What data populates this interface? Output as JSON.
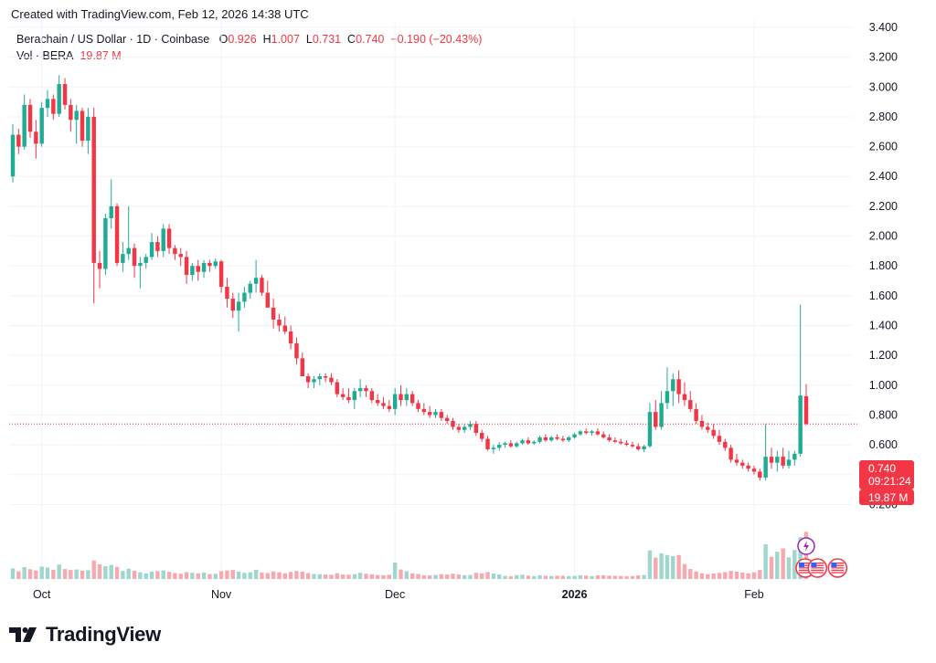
{
  "header": {
    "created_text": "Created with TradingView.com, Feb 12, 2026 14:38 UTC"
  },
  "legend": {
    "symbol": "Berachain / US Dollar · 1D · Coinbase",
    "o_label": "O",
    "o_value": "0.926",
    "h_label": "H",
    "h_value": "1.007",
    "l_label": "L",
    "l_value": "0.731",
    "c_label": "C",
    "c_value": "0.740",
    "change": "−0.190 (−20.43%)",
    "vol_label": "Vol · BERA",
    "vol_value": "19.87 M"
  },
  "price_tag": {
    "price": "0.740",
    "countdown": "09:21:24",
    "volume": "19.87 M"
  },
  "brand": {
    "name": "TradingView"
  },
  "colors": {
    "up": "#22ab94",
    "down": "#f23645",
    "up_vol": "#9fd6cd",
    "down_vol": "#f7a9b0",
    "grid": "#f0f3fa",
    "text": "#131722"
  },
  "chart_data": {
    "type": "candlestick",
    "title": "Berachain / US Dollar · 1D · Coinbase",
    "y_ticks": [
      "3.400",
      "3.200",
      "3.000",
      "2.800",
      "2.600",
      "2.400",
      "2.200",
      "2.000",
      "1.800",
      "1.600",
      "1.400",
      "1.200",
      "1.000",
      "0.800",
      "0.600",
      "0.400",
      "0.200"
    ],
    "x_ticks": [
      {
        "label": "Oct",
        "date": "2025-10-01",
        "bold": false
      },
      {
        "label": "Nov",
        "date": "2025-11-01",
        "bold": false
      },
      {
        "label": "Dec",
        "date": "2025-12-01",
        "bold": false
      },
      {
        "label": "2026",
        "date": "2026-01-01",
        "bold": true
      },
      {
        "label": "Feb",
        "date": "2026-02-01",
        "bold": false
      }
    ],
    "ylim": [
      0.0,
      3.4
    ],
    "x_range": [
      "2025-09-26",
      "2026-02-16"
    ],
    "grid": true,
    "last_price": 0.74,
    "events": [
      {
        "date": "2026-02-10",
        "type": "lightning-icon"
      },
      {
        "date": "2026-02-10",
        "type": "us-flag-icon"
      },
      {
        "date": "2026-02-11",
        "type": "us-flag-icon"
      },
      {
        "date": "2026-02-17",
        "type": "us-flag-icon"
      }
    ],
    "ohlcv": [
      [
        "2025-09-26",
        2.4,
        2.75,
        2.36,
        2.68,
        4.5
      ],
      [
        "2025-09-27",
        2.68,
        2.72,
        2.55,
        2.6,
        3.2
      ],
      [
        "2025-09-28",
        2.6,
        2.95,
        2.58,
        2.88,
        5.0
      ],
      [
        "2025-09-29",
        2.88,
        2.92,
        2.66,
        2.7,
        4.1
      ],
      [
        "2025-09-30",
        2.7,
        2.78,
        2.52,
        2.62,
        3.6
      ],
      [
        "2025-10-01",
        2.62,
        2.9,
        2.6,
        2.86,
        5.2
      ],
      [
        "2025-10-02",
        2.86,
        2.98,
        2.8,
        2.92,
        4.8
      ],
      [
        "2025-10-03",
        2.92,
        2.95,
        2.78,
        2.82,
        3.9
      ],
      [
        "2025-10-04",
        2.82,
        3.08,
        2.8,
        3.02,
        6.1
      ],
      [
        "2025-10-05",
        3.02,
        3.06,
        2.85,
        2.88,
        4.2
      ],
      [
        "2025-10-06",
        2.88,
        2.92,
        2.7,
        2.78,
        3.8
      ],
      [
        "2025-10-07",
        2.78,
        2.88,
        2.62,
        2.84,
        4.0
      ],
      [
        "2025-10-08",
        2.84,
        2.86,
        2.6,
        2.64,
        3.5
      ],
      [
        "2025-10-09",
        2.64,
        2.86,
        2.55,
        2.8,
        3.7
      ],
      [
        "2025-10-10",
        2.8,
        2.86,
        1.55,
        1.82,
        7.8
      ],
      [
        "2025-10-11",
        1.82,
        1.9,
        1.65,
        1.78,
        6.2
      ],
      [
        "2025-10-12",
        1.78,
        2.15,
        1.74,
        2.12,
        5.4
      ],
      [
        "2025-10-13",
        2.12,
        2.38,
        2.05,
        2.2,
        5.9
      ],
      [
        "2025-10-14",
        2.2,
        2.22,
        1.8,
        1.82,
        5.1
      ],
      [
        "2025-10-15",
        1.82,
        1.96,
        1.76,
        1.88,
        3.4
      ],
      [
        "2025-10-16",
        1.88,
        2.2,
        1.84,
        1.92,
        4.3
      ],
      [
        "2025-10-17",
        1.92,
        1.95,
        1.72,
        1.8,
        3.5
      ],
      [
        "2025-10-18",
        1.8,
        1.86,
        1.65,
        1.82,
        2.8
      ],
      [
        "2025-10-19",
        1.82,
        1.88,
        1.78,
        1.86,
        2.4
      ],
      [
        "2025-10-20",
        1.86,
        2.02,
        1.84,
        1.96,
        3.1
      ],
      [
        "2025-10-21",
        1.96,
        2.0,
        1.86,
        1.9,
        3.3
      ],
      [
        "2025-10-22",
        1.9,
        2.08,
        1.86,
        2.05,
        3.6
      ],
      [
        "2025-10-23",
        2.05,
        2.08,
        1.88,
        1.92,
        3.0
      ],
      [
        "2025-10-24",
        1.92,
        1.94,
        1.84,
        1.88,
        2.5
      ],
      [
        "2025-10-25",
        1.88,
        1.92,
        1.8,
        1.86,
        2.2
      ],
      [
        "2025-10-26",
        1.86,
        1.9,
        1.68,
        1.74,
        2.9
      ],
      [
        "2025-10-27",
        1.74,
        1.82,
        1.7,
        1.8,
        2.6
      ],
      [
        "2025-10-28",
        1.8,
        1.84,
        1.7,
        1.76,
        2.4
      ],
      [
        "2025-10-29",
        1.76,
        1.84,
        1.72,
        1.82,
        2.7
      ],
      [
        "2025-10-30",
        1.82,
        1.84,
        1.76,
        1.8,
        2.1
      ],
      [
        "2025-10-31",
        1.8,
        1.85,
        1.78,
        1.83,
        2.2
      ],
      [
        "2025-11-01",
        1.83,
        1.84,
        1.62,
        1.66,
        3.3
      ],
      [
        "2025-11-02",
        1.66,
        1.72,
        1.52,
        1.58,
        3.6
      ],
      [
        "2025-11-03",
        1.58,
        1.62,
        1.45,
        1.5,
        3.8
      ],
      [
        "2025-11-04",
        1.5,
        1.62,
        1.36,
        1.56,
        3.1
      ],
      [
        "2025-11-05",
        1.56,
        1.66,
        1.52,
        1.62,
        2.6
      ],
      [
        "2025-11-06",
        1.62,
        1.7,
        1.58,
        1.68,
        2.8
      ],
      [
        "2025-11-07",
        1.68,
        1.84,
        1.62,
        1.72,
        3.9
      ],
      [
        "2025-11-08",
        1.72,
        1.74,
        1.6,
        1.62,
        2.7
      ],
      [
        "2025-11-09",
        1.62,
        1.7,
        1.58,
        1.52,
        2.5
      ],
      [
        "2025-11-10",
        1.52,
        1.58,
        1.38,
        1.44,
        3.2
      ],
      [
        "2025-11-11",
        1.44,
        1.48,
        1.36,
        1.4,
        2.8
      ],
      [
        "2025-11-12",
        1.4,
        1.46,
        1.34,
        1.36,
        2.4
      ],
      [
        "2025-11-13",
        1.36,
        1.4,
        1.24,
        1.28,
        3.0
      ],
      [
        "2025-11-14",
        1.28,
        1.32,
        1.14,
        1.18,
        3.4
      ],
      [
        "2025-11-15",
        1.18,
        1.22,
        1.06,
        1.06,
        3.1
      ],
      [
        "2025-11-16",
        1.06,
        1.08,
        0.98,
        1.02,
        2.5
      ],
      [
        "2025-11-17",
        1.02,
        1.06,
        0.98,
        1.04,
        2.1
      ],
      [
        "2025-11-18",
        1.04,
        1.08,
        1.0,
        1.06,
        2.0
      ],
      [
        "2025-11-19",
        1.06,
        1.08,
        1.02,
        1.05,
        1.9
      ],
      [
        "2025-11-20",
        1.05,
        1.08,
        1.0,
        1.02,
        1.8
      ],
      [
        "2025-11-21",
        1.02,
        1.04,
        0.92,
        0.94,
        2.4
      ],
      [
        "2025-11-22",
        0.94,
        0.98,
        0.9,
        0.92,
        1.9
      ],
      [
        "2025-11-23",
        0.92,
        0.98,
        0.88,
        0.9,
        1.8
      ],
      [
        "2025-11-24",
        0.9,
        0.98,
        0.84,
        0.96,
        2.0
      ],
      [
        "2025-11-25",
        0.96,
        1.04,
        0.92,
        0.98,
        2.6
      ],
      [
        "2025-11-26",
        0.98,
        1.0,
        0.92,
        0.96,
        2.2
      ],
      [
        "2025-11-27",
        0.96,
        0.98,
        0.88,
        0.9,
        2.0
      ],
      [
        "2025-11-28",
        0.9,
        0.94,
        0.86,
        0.88,
        1.7
      ],
      [
        "2025-11-29",
        0.88,
        0.92,
        0.84,
        0.86,
        1.6
      ],
      [
        "2025-11-30",
        0.86,
        0.9,
        0.82,
        0.84,
        1.8
      ],
      [
        "2025-12-01",
        0.84,
        0.98,
        0.8,
        0.94,
        6.9
      ],
      [
        "2025-12-02",
        0.94,
        1.0,
        0.86,
        0.9,
        4.0
      ],
      [
        "2025-12-03",
        0.9,
        0.98,
        0.86,
        0.94,
        3.3
      ],
      [
        "2025-12-04",
        0.94,
        0.96,
        0.86,
        0.88,
        2.4
      ],
      [
        "2025-12-05",
        0.88,
        0.9,
        0.82,
        0.84,
        2.1
      ],
      [
        "2025-12-06",
        0.84,
        0.88,
        0.8,
        0.82,
        1.6
      ],
      [
        "2025-12-07",
        0.82,
        0.86,
        0.78,
        0.8,
        1.5
      ],
      [
        "2025-12-08",
        0.8,
        0.84,
        0.78,
        0.82,
        1.7
      ],
      [
        "2025-12-09",
        0.82,
        0.84,
        0.76,
        0.78,
        2.0
      ],
      [
        "2025-12-10",
        0.78,
        0.8,
        0.74,
        0.76,
        1.9
      ],
      [
        "2025-12-11",
        0.76,
        0.78,
        0.7,
        0.72,
        2.2
      ],
      [
        "2025-12-12",
        0.72,
        0.74,
        0.68,
        0.7,
        1.9
      ],
      [
        "2025-12-13",
        0.7,
        0.74,
        0.68,
        0.72,
        1.6
      ],
      [
        "2025-12-14",
        0.72,
        0.76,
        0.7,
        0.74,
        1.7
      ],
      [
        "2025-12-15",
        0.74,
        0.76,
        0.66,
        0.68,
        2.6
      ],
      [
        "2025-12-16",
        0.68,
        0.7,
        0.62,
        0.64,
        2.4
      ],
      [
        "2025-12-17",
        0.64,
        0.66,
        0.56,
        0.57,
        2.9
      ],
      [
        "2025-12-18",
        0.57,
        0.6,
        0.54,
        0.58,
        2.3
      ],
      [
        "2025-12-19",
        0.58,
        0.62,
        0.56,
        0.6,
        1.9
      ],
      [
        "2025-12-20",
        0.6,
        0.62,
        0.58,
        0.61,
        1.3
      ],
      [
        "2025-12-21",
        0.61,
        0.63,
        0.58,
        0.59,
        1.1
      ],
      [
        "2025-12-22",
        0.59,
        0.62,
        0.58,
        0.61,
        1.6
      ],
      [
        "2025-12-23",
        0.61,
        0.64,
        0.6,
        0.63,
        1.8
      ],
      [
        "2025-12-24",
        0.63,
        0.65,
        0.6,
        0.61,
        1.4
      ],
      [
        "2025-12-25",
        0.61,
        0.63,
        0.6,
        0.62,
        1.2
      ],
      [
        "2025-12-26",
        0.62,
        0.66,
        0.61,
        0.65,
        1.5
      ],
      [
        "2025-12-27",
        0.65,
        0.67,
        0.62,
        0.63,
        1.3
      ],
      [
        "2025-12-28",
        0.63,
        0.66,
        0.62,
        0.65,
        1.2
      ],
      [
        "2025-12-29",
        0.65,
        0.67,
        0.63,
        0.64,
        1.4
      ],
      [
        "2025-12-30",
        0.64,
        0.66,
        0.62,
        0.63,
        1.3
      ],
      [
        "2025-12-31",
        0.63,
        0.66,
        0.62,
        0.65,
        1.2
      ],
      [
        "2026-01-01",
        0.65,
        0.68,
        0.64,
        0.67,
        1.3
      ],
      [
        "2026-01-02",
        0.67,
        0.7,
        0.66,
        0.69,
        1.6
      ],
      [
        "2026-01-03",
        0.69,
        0.71,
        0.67,
        0.68,
        1.4
      ],
      [
        "2026-01-04",
        0.68,
        0.7,
        0.66,
        0.69,
        1.2
      ],
      [
        "2026-01-05",
        0.69,
        0.71,
        0.66,
        0.67,
        1.5
      ],
      [
        "2026-01-06",
        0.67,
        0.69,
        0.64,
        0.65,
        1.6
      ],
      [
        "2026-01-07",
        0.65,
        0.67,
        0.62,
        0.63,
        1.4
      ],
      [
        "2026-01-08",
        0.63,
        0.65,
        0.61,
        0.62,
        1.3
      ],
      [
        "2026-01-09",
        0.62,
        0.64,
        0.6,
        0.61,
        1.2
      ],
      [
        "2026-01-10",
        0.61,
        0.63,
        0.59,
        0.6,
        1.1
      ],
      [
        "2026-01-11",
        0.6,
        0.62,
        0.58,
        0.59,
        1.2
      ],
      [
        "2026-01-12",
        0.59,
        0.61,
        0.56,
        0.57,
        1.5
      ],
      [
        "2026-01-13",
        0.57,
        0.6,
        0.55,
        0.59,
        1.7
      ],
      [
        "2026-01-14",
        0.59,
        0.88,
        0.58,
        0.82,
        12.0
      ],
      [
        "2026-01-15",
        0.82,
        0.9,
        0.7,
        0.72,
        9.0
      ],
      [
        "2026-01-16",
        0.72,
        0.96,
        0.7,
        0.88,
        10.8
      ],
      [
        "2026-01-17",
        0.88,
        1.12,
        0.84,
        0.96,
        10.1
      ],
      [
        "2026-01-18",
        0.96,
        1.08,
        0.86,
        1.04,
        9.6
      ],
      [
        "2026-01-19",
        1.04,
        1.1,
        0.88,
        0.94,
        10.1
      ],
      [
        "2026-01-20",
        0.94,
        1.02,
        0.86,
        0.9,
        6.3
      ],
      [
        "2026-01-21",
        0.9,
        0.96,
        0.82,
        0.84,
        4.2
      ],
      [
        "2026-01-22",
        0.84,
        0.88,
        0.74,
        0.76,
        3.2
      ],
      [
        "2026-01-23",
        0.76,
        0.8,
        0.7,
        0.72,
        2.4
      ],
      [
        "2026-01-24",
        0.72,
        0.75,
        0.68,
        0.7,
        2.0
      ],
      [
        "2026-01-25",
        0.7,
        0.74,
        0.64,
        0.66,
        2.3
      ],
      [
        "2026-01-26",
        0.66,
        0.7,
        0.6,
        0.62,
        2.6
      ],
      [
        "2026-01-27",
        0.62,
        0.64,
        0.56,
        0.58,
        2.9
      ],
      [
        "2026-01-28",
        0.58,
        0.6,
        0.48,
        0.5,
        3.4
      ],
      [
        "2026-01-29",
        0.5,
        0.54,
        0.46,
        0.48,
        3.1
      ],
      [
        "2026-01-30",
        0.48,
        0.5,
        0.44,
        0.46,
        2.7
      ],
      [
        "2026-01-31",
        0.46,
        0.48,
        0.42,
        0.44,
        2.4
      ],
      [
        "2026-02-01",
        0.44,
        0.46,
        0.4,
        0.42,
        2.8
      ],
      [
        "2026-02-02",
        0.42,
        0.44,
        0.36,
        0.38,
        3.8
      ],
      [
        "2026-02-03",
        0.38,
        0.74,
        0.36,
        0.52,
        14.6
      ],
      [
        "2026-02-04",
        0.52,
        0.58,
        0.44,
        0.48,
        9.3
      ],
      [
        "2026-02-05",
        0.48,
        0.56,
        0.42,
        0.52,
        11.5
      ],
      [
        "2026-02-06",
        0.52,
        0.58,
        0.44,
        0.46,
        12.9
      ],
      [
        "2026-02-07",
        0.46,
        0.56,
        0.44,
        0.5,
        9.1
      ],
      [
        "2026-02-08",
        0.5,
        0.56,
        0.46,
        0.54,
        12.2
      ],
      [
        "2026-02-09",
        0.54,
        1.54,
        0.52,
        0.93,
        17.6
      ],
      [
        "2026-02-10",
        0.926,
        1.007,
        0.731,
        0.74,
        19.87
      ]
    ]
  }
}
